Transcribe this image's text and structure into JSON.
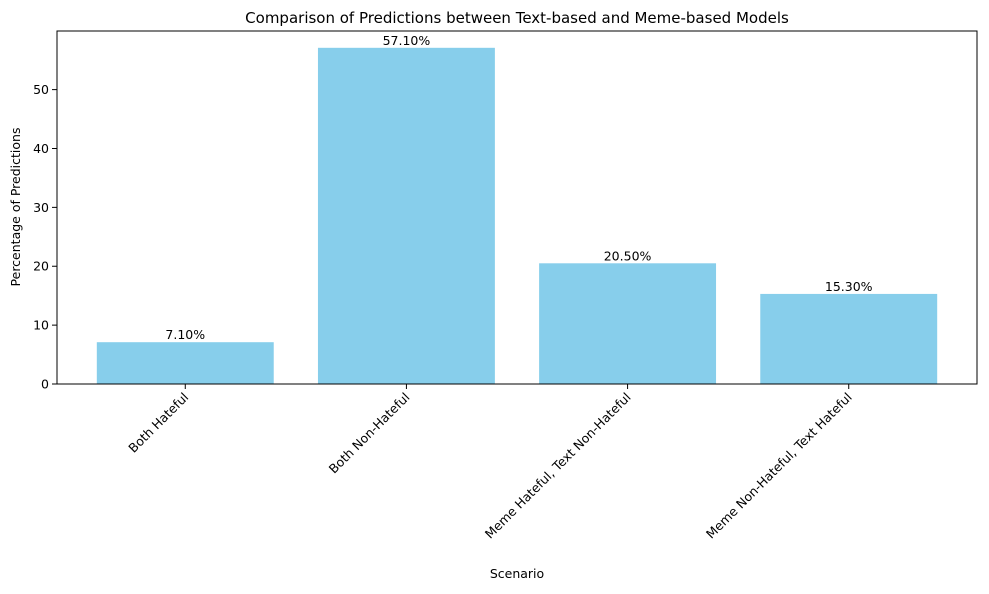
{
  "chart_data": {
    "type": "bar",
    "title": "Comparison of Predictions between Text-based and Meme-based Models",
    "xlabel": "Scenario",
    "ylabel": "Percentage of Predictions",
    "categories": [
      "Both Hateful",
      "Both Non-Hateful",
      "Meme Hateful, Text Non-Hateful",
      "Meme Non-Hateful, Text Hateful"
    ],
    "values": [
      7.1,
      57.1,
      20.5,
      15.3
    ],
    "data_labels": [
      "7.10%",
      "57.10%",
      "20.50%",
      "15.30%"
    ],
    "ylim": [
      0,
      59.955
    ],
    "yticks": [
      0,
      10,
      20,
      30,
      40,
      50
    ],
    "bar_color": "#87CEEB",
    "grid": false,
    "legend": "none"
  }
}
